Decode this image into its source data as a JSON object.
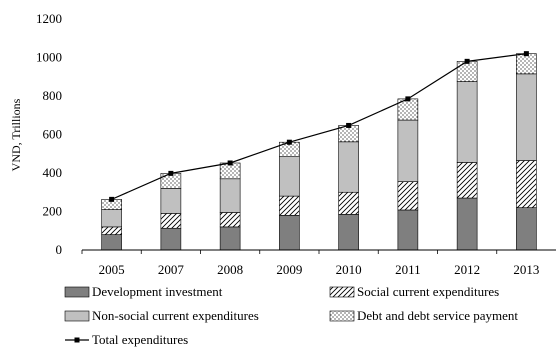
{
  "chart_data": {
    "type": "bar",
    "stacked": true,
    "title": "",
    "xlabel": "",
    "ylabel": "VND, Trillions",
    "ylim": [
      0,
      1200
    ],
    "yticks": [
      0,
      200,
      400,
      600,
      800,
      1000,
      1200
    ],
    "grid": false,
    "legend_position": "bottom",
    "categories": [
      "2005",
      "2007",
      "2008",
      "2009",
      "2010",
      "2011",
      "2012",
      "2013"
    ],
    "series": [
      {
        "name": "Development investment",
        "fill": "#7f7f7f",
        "pattern": "solid",
        "values": [
          80,
          113,
          120,
          180,
          185,
          208,
          270,
          220
        ]
      },
      {
        "name": "Social current expenditures",
        "fill": "#ffffff",
        "pattern": "diagonal",
        "values": [
          40,
          77,
          75,
          100,
          115,
          147,
          185,
          245
        ]
      },
      {
        "name": "Non-social current expenditures",
        "fill": "#c0c0c0",
        "pattern": "solid",
        "values": [
          90,
          130,
          175,
          205,
          262,
          320,
          420,
          450
        ]
      },
      {
        "name": "Debt and debt service payment",
        "fill": "#ffffff",
        "pattern": "dots",
        "values": [
          53,
          78,
          82,
          75,
          85,
          110,
          105,
          105
        ]
      }
    ],
    "line_series": {
      "name": "Total expenditures",
      "color": "#000000",
      "marker": "square",
      "values": [
        263,
        398,
        452,
        560,
        647,
        785,
        980,
        1020
      ]
    }
  }
}
